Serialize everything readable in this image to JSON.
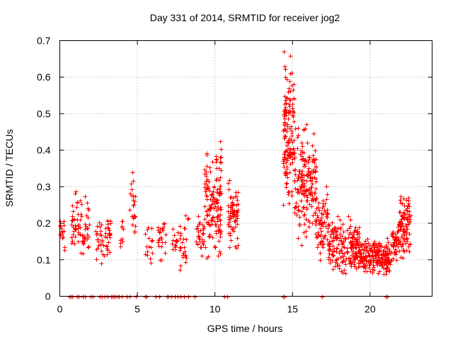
{
  "chart_data": {
    "type": "scatter",
    "title": "Day 331 of 2014, SRMTID for receiver jog2",
    "xlabel": "GPS time / hours",
    "ylabel": "SRMTID / TECUs",
    "xlim": [
      0,
      24
    ],
    "ylim": [
      0,
      0.7
    ],
    "xticks": [
      0,
      5,
      10,
      15,
      20
    ],
    "xtick_labels": [
      "0",
      "5",
      "10",
      "15",
      "20"
    ],
    "yticks": [
      0,
      0.1,
      0.2,
      0.3,
      0.4,
      0.5,
      0.6,
      0.7
    ],
    "ytick_labels": [
      "0",
      "0.1",
      "0.2",
      "0.3",
      "0.4",
      "0.5",
      "0.6",
      "0.7"
    ],
    "grid": true,
    "marker": "+",
    "color": "#ff0000",
    "series": [
      {
        "name": "SRMTID",
        "clusters": [
          {
            "x": [
              0.0,
              0.3
            ],
            "y": [
              0.1,
              0.24
            ],
            "n": 18
          },
          {
            "x": [
              0.7,
              1.9
            ],
            "y": [
              0.1,
              0.3
            ],
            "n": 70
          },
          {
            "x": [
              2.3,
              3.1
            ],
            "y": [
              0.09,
              0.22
            ],
            "n": 35
          },
          {
            "x": [
              3.0,
              3.3
            ],
            "y": [
              0.12,
              0.24
            ],
            "n": 16
          },
          {
            "x": [
              3.8,
              4.1
            ],
            "y": [
              0.13,
              0.22
            ],
            "n": 10
          },
          {
            "x": [
              4.5,
              4.9
            ],
            "y": [
              0.1,
              0.34
            ],
            "n": 24
          },
          {
            "x": [
              5.5,
              6.0
            ],
            "y": [
              0.08,
              0.2
            ],
            "n": 16
          },
          {
            "x": [
              6.3,
              6.8
            ],
            "y": [
              0.1,
              0.23
            ],
            "n": 24
          },
          {
            "x": [
              7.2,
              7.6
            ],
            "y": [
              0.1,
              0.2
            ],
            "n": 14
          },
          {
            "x": [
              7.7,
              8.3
            ],
            "y": [
              0.04,
              0.25
            ],
            "n": 26
          },
          {
            "x": [
              8.8,
              9.3
            ],
            "y": [
              0.11,
              0.24
            ],
            "n": 30
          },
          {
            "x": [
              9.3,
              10.4
            ],
            "y": [
              0.1,
              0.43
            ],
            "n": 140
          },
          {
            "x": [
              10.8,
              11.5
            ],
            "y": [
              0.13,
              0.32
            ],
            "n": 70
          },
          {
            "x": [
              14.4,
              15.1
            ],
            "y": [
              0.25,
              0.67
            ],
            "n": 140
          },
          {
            "x": [
              15.1,
              16.5
            ],
            "y": [
              0.14,
              0.47
            ],
            "n": 180
          },
          {
            "x": [
              16.5,
              17.3
            ],
            "y": [
              0.1,
              0.3
            ],
            "n": 70
          },
          {
            "x": [
              17.3,
              19.3
            ],
            "y": [
              0.06,
              0.22
            ],
            "n": 200
          },
          {
            "x": [
              19.3,
              21.3
            ],
            "y": [
              0.06,
              0.16
            ],
            "n": 220
          },
          {
            "x": [
              21.3,
              21.8
            ],
            "y": [
              0.08,
              0.2
            ],
            "n": 40
          },
          {
            "x": [
              21.8,
              22.6
            ],
            "y": [
              0.1,
              0.3
            ],
            "n": 100
          }
        ],
        "zero_points_x": [
          0.6,
          0.7,
          0.8,
          1.1,
          1.2,
          1.5,
          1.6,
          2.0,
          2.1,
          2.6,
          2.7,
          2.9,
          3.1,
          3.3,
          3.4,
          3.5,
          3.6,
          3.7,
          3.8,
          4.0,
          4.3,
          4.5,
          4.9,
          5.5,
          5.6,
          6.2,
          6.4,
          6.9,
          7.0,
          7.2,
          7.4,
          7.6,
          7.8,
          8.0,
          8.3,
          8.7,
          10.6,
          10.8,
          14.4,
          14.5,
          16.9,
          21.0,
          21.1
        ]
      }
    ]
  }
}
